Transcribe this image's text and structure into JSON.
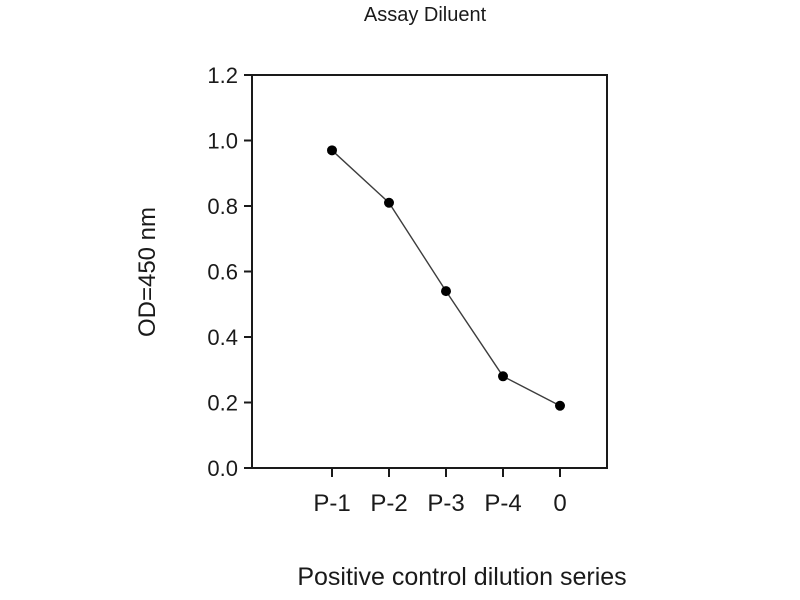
{
  "page": {
    "background": "#ffffff"
  },
  "chart_data": {
    "type": "line",
    "title": "Assay Diluent",
    "xlabel": "Positive control dilution series",
    "ylabel": "OD=450 nm",
    "categories": [
      "P-1",
      "P-2",
      "P-3",
      "P-4",
      "0"
    ],
    "values": [
      0.97,
      0.81,
      0.54,
      0.28,
      0.19
    ],
    "ylim": [
      0.0,
      1.2
    ],
    "yticks": [
      0.0,
      0.2,
      0.4,
      0.6,
      0.8,
      1.0,
      1.2
    ],
    "grid": false,
    "legend": "none",
    "marker": "filled-circle",
    "colors": {
      "line": "#3d3d3d",
      "marker": "#000000",
      "axis": "#1a1a1a",
      "text": "#1a1a1a",
      "background": "#ffffff"
    }
  }
}
